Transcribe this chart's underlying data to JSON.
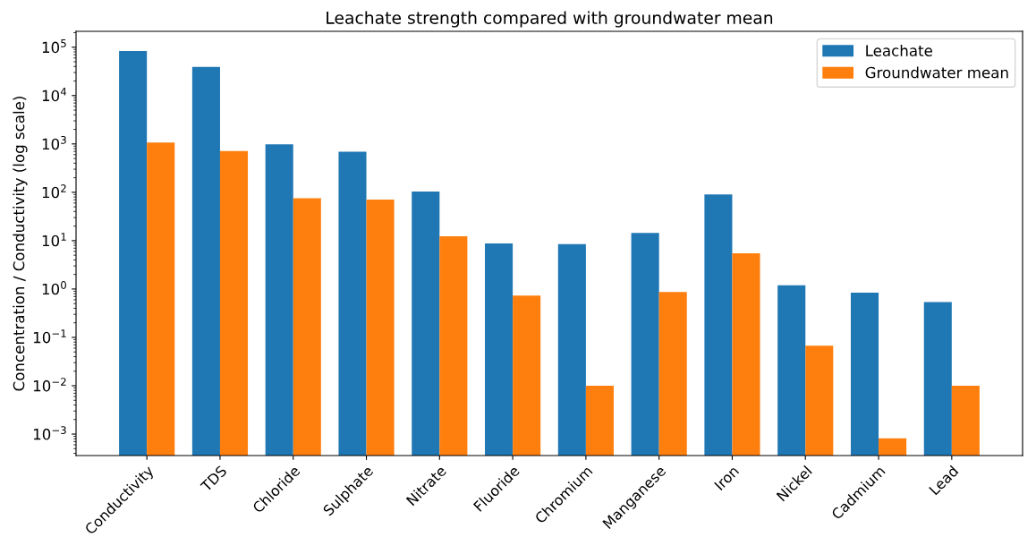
{
  "chart_data": {
    "type": "bar",
    "title": "Leachate strength compared with groundwater mean",
    "ylabel": "Concentration / Conductivity (log scale)",
    "categories": [
      "Conductivity",
      "TDS",
      "Chloride",
      "Sulphate",
      "Nitrate",
      "Fluoride",
      "Chromium",
      "Manganese",
      "Iron",
      "Nickel",
      "Cadmium",
      "Lead"
    ],
    "series": [
      {
        "name": "Leachate",
        "color": "#1f77b4",
        "values": [
          83000,
          39000,
          980,
          690,
          104,
          8.8,
          8.5,
          14.4,
          90,
          1.2,
          0.84,
          0.54
        ]
      },
      {
        "name": "Groundwater mean",
        "color": "#ff7f0e",
        "values": [
          1070,
          710,
          75,
          71,
          12.3,
          0.73,
          0.01,
          0.87,
          5.5,
          0.067,
          0.00082,
          0.01
        ]
      }
    ],
    "log": "y",
    "ylim": [
      0.00036,
      213000
    ],
    "yticks": [
      {
        "value": 0.001,
        "label": "10$^{−3}$"
      },
      {
        "value": 0.01,
        "label": "10$^{−2}$"
      },
      {
        "value": 0.1,
        "label": "10$^{−1}$"
      },
      {
        "value": 1,
        "label": "10$^{0}$"
      },
      {
        "value": 10,
        "label": "10$^{1}$"
      },
      {
        "value": 100,
        "label": "10$^{2}$"
      },
      {
        "value": 1000,
        "label": "10$^{3}$"
      },
      {
        "value": 10000,
        "label": "10$^{4}$"
      },
      {
        "value": 100000,
        "label": "10$^{5}$"
      }
    ],
    "legend": "top right",
    "grid": false
  }
}
